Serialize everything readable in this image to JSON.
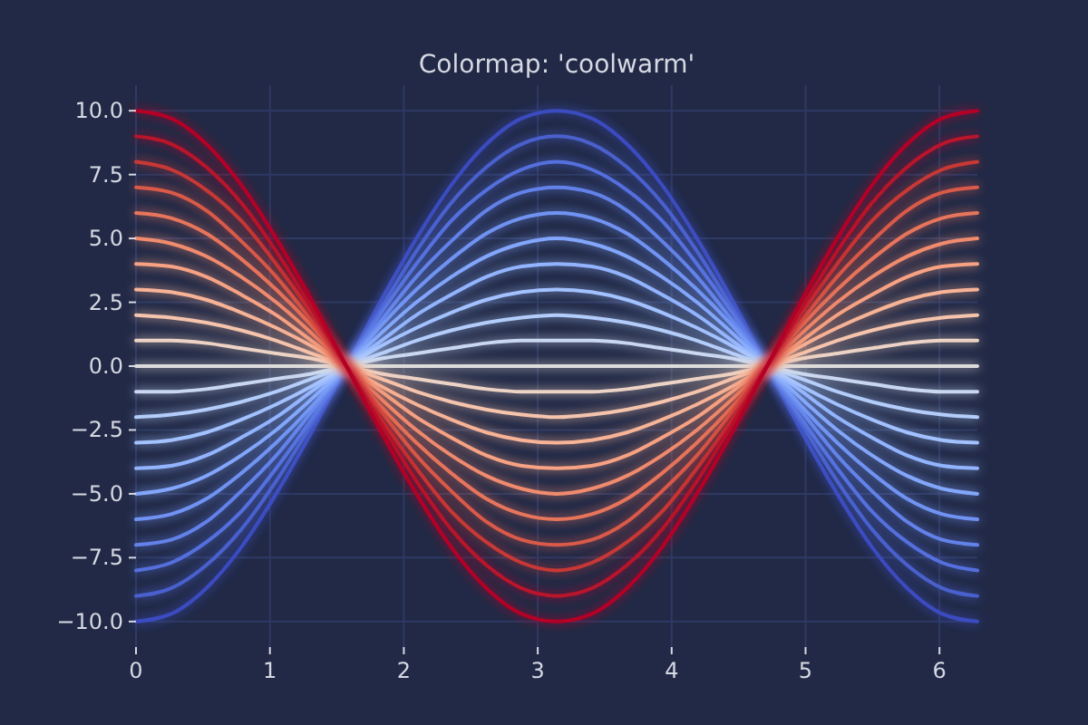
{
  "chart_data": {
    "type": "line",
    "title": "Colormap: 'coolwarm'",
    "grid": true,
    "marker": "none",
    "line_style": "solid",
    "x": [
      0,
      0.262,
      0.524,
      0.785,
      1.047,
      1.309,
      1.571,
      1.833,
      2.094,
      2.356,
      2.618,
      2.88,
      3.142,
      3.403,
      3.665,
      3.927,
      4.189,
      4.451,
      4.712,
      4.974,
      5.236,
      5.498,
      5.76,
      6.021,
      6.283
    ],
    "xlim": [
      0,
      6.283
    ],
    "xticks": [
      0,
      1,
      2,
      3,
      4,
      5,
      6
    ],
    "ylim": [
      -11,
      11
    ],
    "yticks": [
      {
        "value": -10,
        "label": "−10.0"
      },
      {
        "value": -7.5,
        "label": "−7.5"
      },
      {
        "value": -5,
        "label": "−5.0"
      },
      {
        "value": -2.5,
        "label": "−2.5"
      },
      {
        "value": 0,
        "label": "0.0"
      },
      {
        "value": 2.5,
        "label": "2.5"
      },
      {
        "value": 5,
        "label": "5.0"
      },
      {
        "value": 7.5,
        "label": "7.5"
      },
      {
        "value": 10,
        "label": "10.0"
      }
    ],
    "series": [
      {
        "color": "#3b4cc0",
        "values": [
          -10,
          -9.7,
          -8.7,
          -7.1,
          -5,
          -2.6,
          0,
          2.6,
          5,
          7.1,
          8.7,
          9.7,
          10,
          9.7,
          8.7,
          7.1,
          5,
          2.6,
          0,
          -2.6,
          -5,
          -7.1,
          -8.7,
          -9.7,
          -10
        ]
      },
      {
        "color": "#4860cd",
        "values": [
          -9,
          -8.7,
          -7.8,
          -6.4,
          -4.5,
          -2.3,
          0,
          2.3,
          4.5,
          6.4,
          7.8,
          8.7,
          9,
          8.7,
          7.8,
          6.4,
          4.5,
          2.3,
          0,
          -2.3,
          -4.5,
          -6.4,
          -7.8,
          -8.7,
          -9
        ]
      },
      {
        "color": "#5470de",
        "values": [
          -8,
          -7.7,
          -6.9,
          -5.7,
          -4,
          -2.1,
          0,
          2.1,
          4,
          5.7,
          6.9,
          7.7,
          8,
          7.7,
          6.9,
          5.7,
          4,
          2.1,
          0,
          -2.1,
          -4,
          -5.7,
          -6.9,
          -7.7,
          -8
        ]
      },
      {
        "color": "#6282ea",
        "values": [
          -7,
          -6.8,
          -6.1,
          -4.9,
          -3.5,
          -1.8,
          0,
          1.8,
          3.5,
          4.9,
          6.1,
          6.8,
          7,
          6.8,
          6.1,
          4.9,
          3.5,
          1.8,
          0,
          -1.8,
          -3.5,
          -4.9,
          -6.1,
          -6.8,
          -7
        ]
      },
      {
        "color": "#7093f3",
        "values": [
          -6,
          -5.8,
          -5.2,
          -4.2,
          -3,
          -1.6,
          0,
          1.6,
          3,
          4.2,
          5.2,
          5.8,
          6,
          5.8,
          5.2,
          4.2,
          3,
          1.6,
          0,
          -1.6,
          -3,
          -4.2,
          -5.2,
          -5.8,
          -6
        ]
      },
      {
        "color": "#82a6fb",
        "values": [
          -5,
          -4.8,
          -4.3,
          -3.5,
          -2.5,
          -1.3,
          0,
          1.3,
          2.5,
          3.5,
          4.3,
          4.8,
          5,
          4.8,
          4.3,
          3.5,
          2.5,
          1.3,
          0,
          -1.3,
          -2.5,
          -3.5,
          -4.3,
          -4.8,
          -5
        ]
      },
      {
        "color": "#92b4fe",
        "values": [
          -4,
          -3.9,
          -3.5,
          -2.8,
          -2,
          -1,
          0,
          1,
          2,
          2.8,
          3.5,
          3.9,
          4,
          3.9,
          3.5,
          2.8,
          2,
          1,
          0,
          -1,
          -2,
          -2.8,
          -3.5,
          -3.9,
          -4
        ]
      },
      {
        "color": "#a2c1ff",
        "values": [
          -3,
          -2.9,
          -2.6,
          -2.1,
          -1.5,
          -0.8,
          0,
          0.8,
          1.5,
          2.1,
          2.6,
          2.9,
          3,
          2.9,
          2.6,
          2.1,
          1.5,
          0.8,
          0,
          -0.8,
          -1.5,
          -2.1,
          -2.6,
          -2.9,
          -3
        ]
      },
      {
        "color": "#b3cdfb",
        "values": [
          -2,
          -1.9,
          -1.7,
          -1.4,
          -1,
          -0.5,
          0,
          0.5,
          1,
          1.4,
          1.7,
          1.9,
          2,
          1.9,
          1.7,
          1.4,
          1,
          0.5,
          0,
          -0.5,
          -1,
          -1.4,
          -1.7,
          -1.9,
          -2
        ]
      },
      {
        "color": "#c9d7f0",
        "values": [
          -1,
          -1,
          -0.9,
          -0.7,
          -0.5,
          -0.3,
          0,
          0.3,
          0.5,
          0.7,
          0.9,
          1,
          1,
          1,
          0.9,
          0.7,
          0.5,
          0.3,
          0,
          -0.3,
          -0.5,
          -0.7,
          -0.9,
          -1,
          -1
        ]
      },
      {
        "color": "#dddcdc",
        "values": [
          0,
          0,
          0,
          0,
          0,
          0,
          0,
          0,
          0,
          0,
          0,
          0,
          0,
          0,
          0,
          0,
          0,
          0,
          0,
          0,
          0,
          0,
          0,
          0,
          0
        ]
      },
      {
        "color": "#ecd3c5",
        "values": [
          1,
          1,
          0.9,
          0.7,
          0.5,
          0.3,
          0,
          -0.3,
          -0.5,
          -0.7,
          -0.9,
          -1,
          -1,
          -1,
          -0.9,
          -0.7,
          -0.5,
          -0.3,
          0,
          0.3,
          0.5,
          0.7,
          0.9,
          1,
          1
        ]
      },
      {
        "color": "#f5c4ac",
        "values": [
          2,
          1.9,
          1.7,
          1.4,
          1,
          0.5,
          0,
          -0.5,
          -1,
          -1.4,
          -1.7,
          -1.9,
          -2,
          -1.9,
          -1.7,
          -1.4,
          -1,
          -0.5,
          0,
          0.5,
          1,
          1.4,
          1.7,
          1.9,
          2
        ]
      },
      {
        "color": "#f7b396",
        "values": [
          3,
          2.9,
          2.6,
          2.1,
          1.5,
          0.8,
          0,
          -0.8,
          -1.5,
          -2.1,
          -2.6,
          -2.9,
          -3,
          -2.9,
          -2.6,
          -2.1,
          -1.5,
          -0.8,
          0,
          0.8,
          1.5,
          2.1,
          2.6,
          2.9,
          3
        ]
      },
      {
        "color": "#f6a283",
        "values": [
          4,
          3.9,
          3.5,
          2.8,
          2,
          1,
          0,
          -1,
          -2,
          -2.8,
          -3.5,
          -3.9,
          -4,
          -3.9,
          -3.5,
          -2.8,
          -2,
          -1,
          0,
          1,
          2,
          2.8,
          3.5,
          3.9,
          4
        ]
      },
      {
        "color": "#f08b6e",
        "values": [
          5,
          4.8,
          4.3,
          3.5,
          2.5,
          1.3,
          0,
          -1.3,
          -2.5,
          -3.5,
          -4.3,
          -4.8,
          -5,
          -4.8,
          -4.3,
          -3.5,
          -2.5,
          -1.3,
          0,
          1.3,
          2.5,
          3.5,
          4.3,
          4.8,
          5
        ]
      },
      {
        "color": "#e7745b",
        "values": [
          6,
          5.8,
          5.2,
          4.2,
          3,
          1.6,
          0,
          -1.6,
          -3,
          -4.2,
          -5.2,
          -5.8,
          -6,
          -5.8,
          -5.2,
          -4.2,
          -3,
          -1.6,
          0,
          1.6,
          3,
          4.2,
          5.2,
          5.8,
          6
        ]
      },
      {
        "color": "#da5a49",
        "values": [
          7,
          6.8,
          6.1,
          4.9,
          3.5,
          1.8,
          0,
          -1.8,
          -3.5,
          -4.9,
          -6.1,
          -6.8,
          -7,
          -6.8,
          -6.1,
          -4.9,
          -3.5,
          -1.8,
          0,
          1.8,
          3.5,
          4.9,
          6.1,
          6.8,
          7
        ]
      },
      {
        "color": "#c83836",
        "values": [
          8,
          7.7,
          6.9,
          5.7,
          4,
          2.1,
          0,
          -2.1,
          -4,
          -5.7,
          -6.9,
          -7.7,
          -8,
          -7.7,
          -6.9,
          -5.7,
          -4,
          -2.1,
          0,
          2.1,
          4,
          5.7,
          6.9,
          7.7,
          8
        ]
      },
      {
        "color": "#b8122a",
        "values": [
          9,
          8.7,
          7.8,
          6.4,
          4.5,
          2.3,
          0,
          -2.3,
          -4.5,
          -6.4,
          -7.8,
          -8.7,
          -9,
          -8.7,
          -7.8,
          -6.4,
          -4.5,
          -2.3,
          0,
          2.3,
          4.5,
          6.4,
          7.8,
          8.7,
          9
        ]
      },
      {
        "color": "#b40426",
        "values": [
          10,
          9.7,
          8.7,
          7.1,
          5,
          2.6,
          0,
          -2.6,
          -5,
          -7.1,
          -8.7,
          -9.7,
          -10,
          -9.7,
          -8.7,
          -7.1,
          -5,
          -2.6,
          0,
          2.6,
          5,
          7.1,
          8.7,
          9.7,
          10
        ]
      }
    ]
  }
}
